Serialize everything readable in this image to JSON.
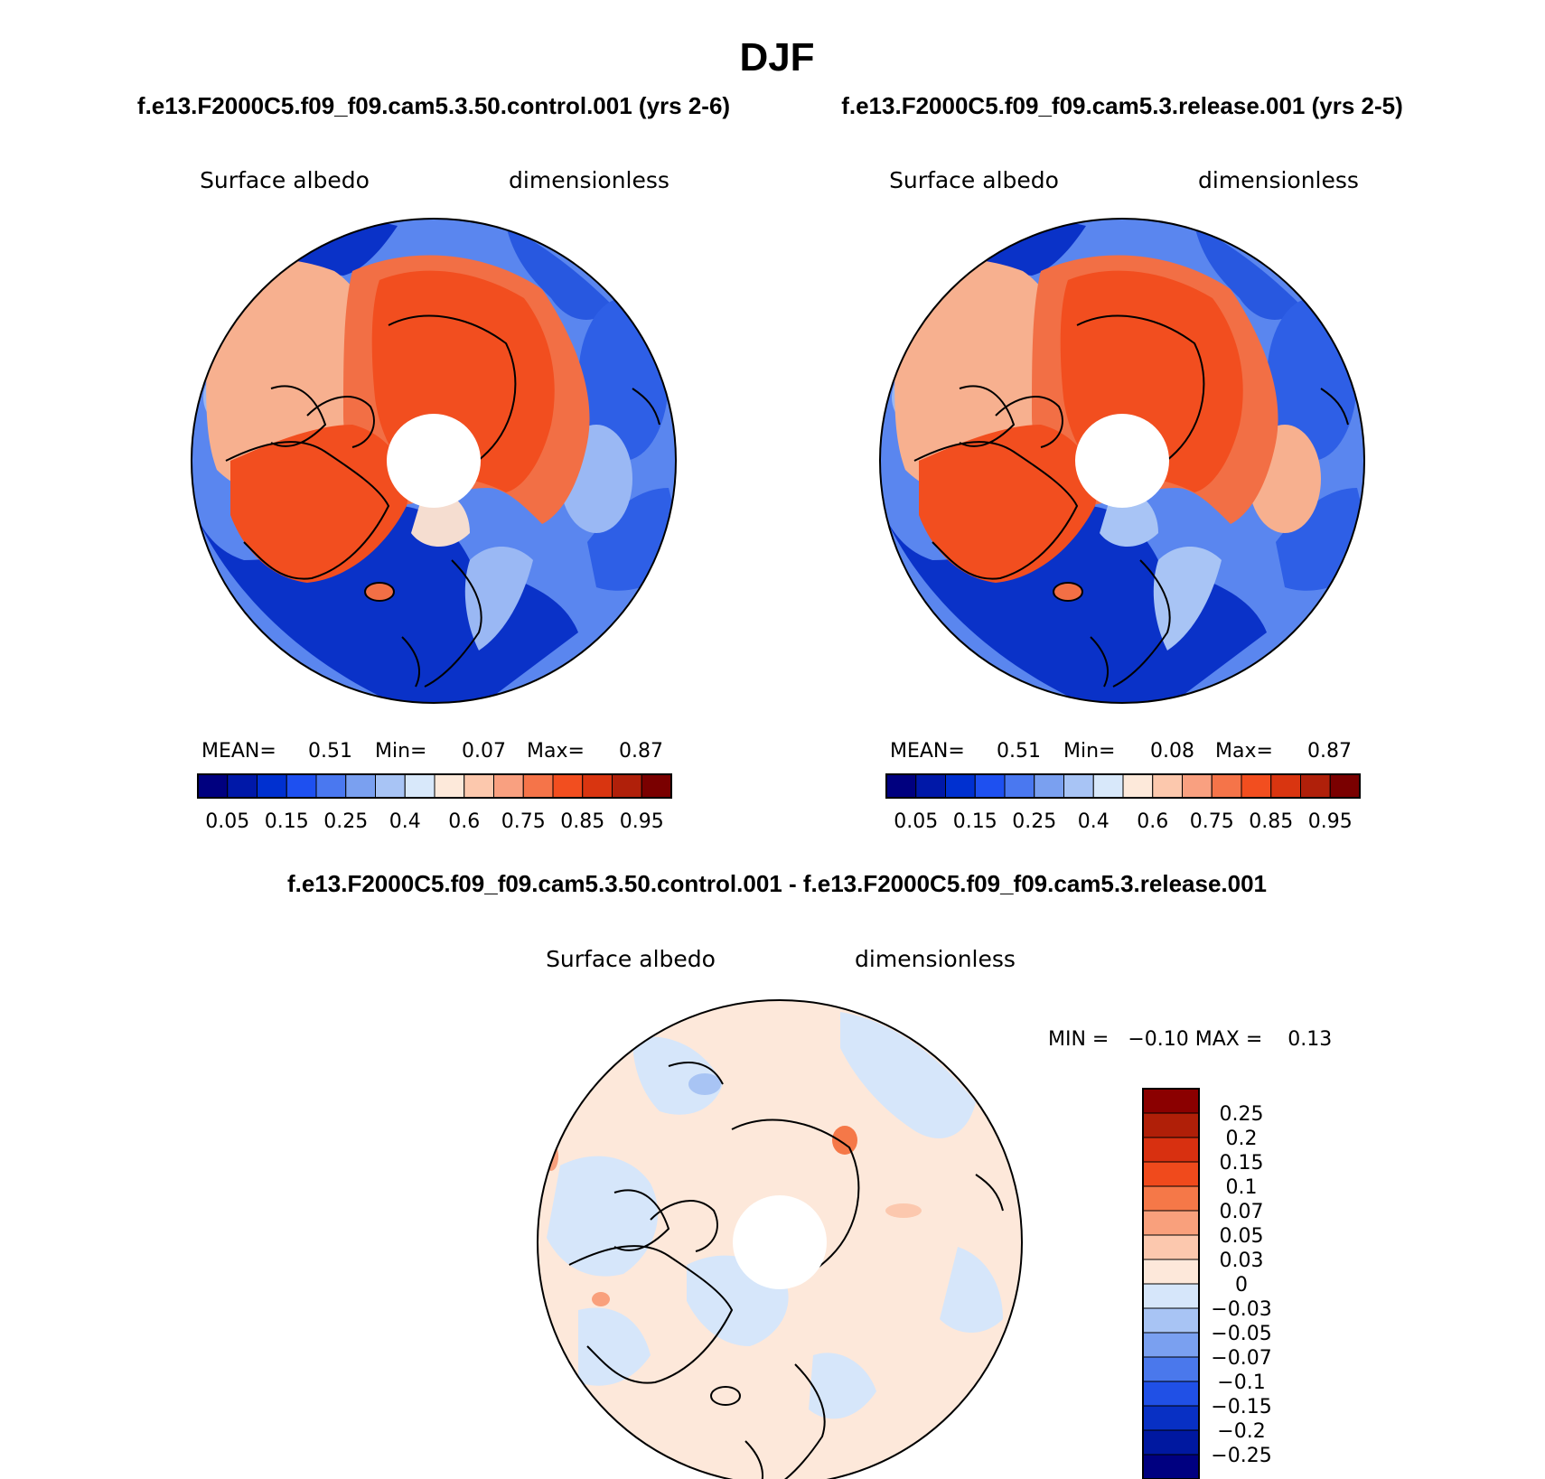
{
  "title": "DJF",
  "panels": [
    {
      "case_title": "f.e13.F2000C5.f09_f09.cam5.3.50.control.001 (yrs 2-6)",
      "variable": "Surface albedo",
      "units": "dimensionless",
      "stats": {
        "mean_label": "MEAN=",
        "mean": "0.51",
        "min_label": "Min=",
        "min": "0.07",
        "max_label": "Max=",
        "max": "0.87"
      }
    },
    {
      "case_title": "f.e13.F2000C5.f09_f09.cam5.3.release.001 (yrs 2-5)",
      "variable": "Surface albedo",
      "units": "dimensionless",
      "stats": {
        "mean_label": "MEAN=",
        "mean": "0.51",
        "min_label": "Min=",
        "min": "0.08",
        "max_label": "Max=",
        "max": "0.87"
      }
    }
  ],
  "diff_panel": {
    "case_title": "f.e13.F2000C5.f09_f09.cam5.3.50.control.001 - f.e13.F2000C5.f09_f09.cam5.3.release.001",
    "variable": "Surface albedo",
    "units": "dimensionless",
    "range_text": "MIN =   −0.10 MAX =    0.13"
  },
  "abs_colorbar": {
    "tick_labels": [
      "0.05",
      "0.15",
      "0.25",
      "0.4",
      "0.6",
      "0.75",
      "0.85",
      "0.95"
    ],
    "colors": [
      "#00007f",
      "#0018a8",
      "#0030d0",
      "#1e50f0",
      "#4a78f0",
      "#7aa0f0",
      "#a8c4f5",
      "#d8e8fa",
      "#fde9da",
      "#fcc8ad",
      "#f9a080",
      "#f57449",
      "#f24e1f",
      "#d93510",
      "#b0200a",
      "#7a0000"
    ]
  },
  "diff_colorbar": {
    "tick_labels": [
      "0.25",
      "0.2",
      "0.15",
      "0.1",
      "0.07",
      "0.05",
      "0.03",
      "0",
      "−0.03",
      "−0.05",
      "−0.07",
      "−0.1",
      "−0.15",
      "−0.2",
      "−0.25"
    ],
    "colors_top_to_bottom": [
      "#8b0000",
      "#b01f08",
      "#d83010",
      "#f04a1c",
      "#f57848",
      "#f9a07c",
      "#fcc8ae",
      "#fde8da",
      "#d6e6fa",
      "#a8c4f4",
      "#7aa0f0",
      "#4a78ec",
      "#2050e6",
      "#0830c4",
      "#0018a0",
      "#000080"
    ]
  },
  "chart_data": {
    "type": "heatmap",
    "title": "DJF",
    "projection": "north polar stereographic",
    "fields": [
      {
        "name": "control.001 (yrs 2-6)",
        "variable": "Surface albedo",
        "units": "dimensionless",
        "mean": 0.51,
        "min": 0.07,
        "max": 0.87,
        "levels": [
          0.05,
          0.1,
          0.15,
          0.2,
          0.25,
          0.3,
          0.4,
          0.5,
          0.6,
          0.7,
          0.75,
          0.8,
          0.85,
          0.9,
          0.95
        ]
      },
      {
        "name": "release.001 (yrs 2-5)",
        "variable": "Surface albedo",
        "units": "dimensionless",
        "mean": 0.51,
        "min": 0.08,
        "max": 0.87,
        "levels": [
          0.05,
          0.1,
          0.15,
          0.2,
          0.25,
          0.3,
          0.4,
          0.5,
          0.6,
          0.7,
          0.75,
          0.8,
          0.85,
          0.9,
          0.95
        ]
      },
      {
        "name": "control.001 - release.001",
        "variable": "Surface albedo",
        "units": "dimensionless",
        "min": -0.1,
        "max": 0.13,
        "levels": [
          -0.25,
          -0.2,
          -0.15,
          -0.1,
          -0.07,
          -0.05,
          -0.03,
          0,
          0.03,
          0.05,
          0.07,
          0.1,
          0.15,
          0.2,
          0.25
        ]
      }
    ]
  }
}
